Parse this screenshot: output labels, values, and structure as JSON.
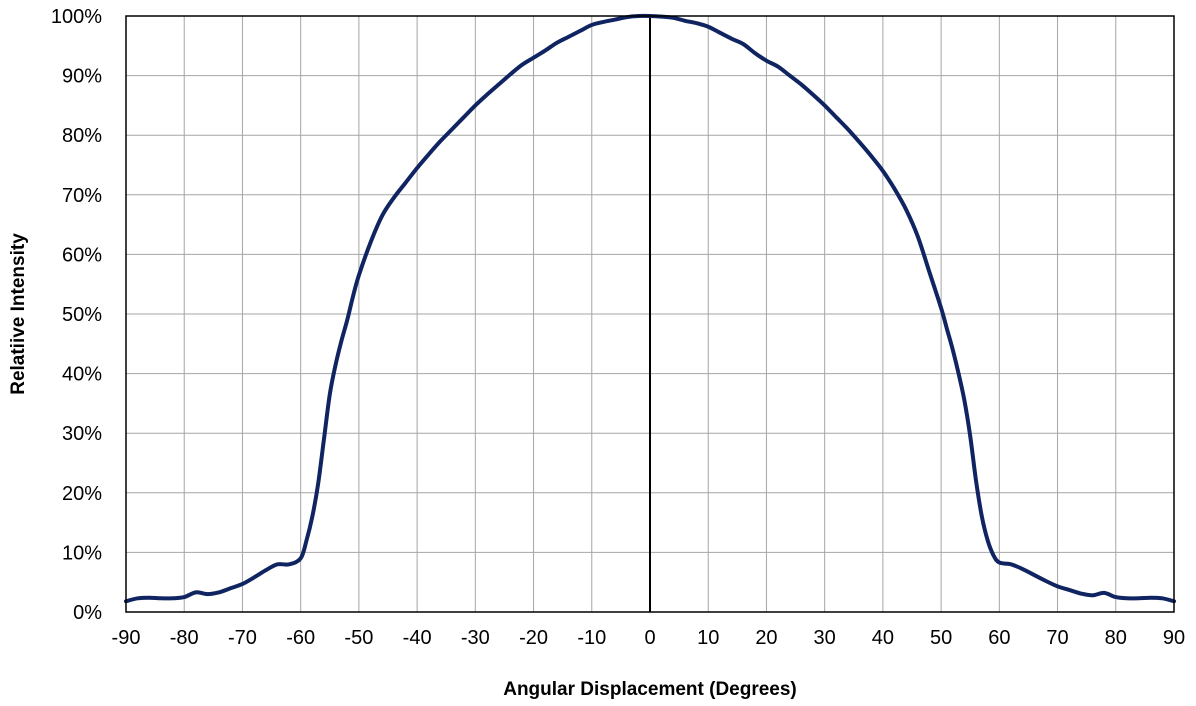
{
  "chart_data": {
    "type": "line",
    "title": "",
    "xlabel": "Angular Displacement (Degrees)",
    "ylabel": "Relatiive Intensity",
    "xlim": [
      -90,
      90
    ],
    "ylim": [
      0,
      100
    ],
    "x_ticks": [
      -90,
      -80,
      -70,
      -60,
      -50,
      -40,
      -30,
      -20,
      -10,
      0,
      10,
      20,
      30,
      40,
      50,
      60,
      70,
      80,
      90
    ],
    "x_tick_labels": [
      "-90",
      "-80",
      "-70",
      "-60",
      "-50",
      "-40",
      "-30",
      "-20",
      "-10",
      "0",
      "10",
      "20",
      "30",
      "40",
      "50",
      "60",
      "70",
      "80",
      "90"
    ],
    "y_ticks": [
      0,
      10,
      20,
      30,
      40,
      50,
      60,
      70,
      80,
      90,
      100
    ],
    "y_tick_labels": [
      "0%",
      "10%",
      "20%",
      "30%",
      "40%",
      "50%",
      "60%",
      "70%",
      "80%",
      "90%",
      "100%"
    ],
    "grid": true,
    "legend": "none",
    "colors": {
      "line": "#0f2461",
      "grid": "#a6a6a6",
      "axis": "#000000"
    },
    "series": [
      {
        "x": [
          -90,
          -88,
          -86,
          -84,
          -82,
          -80,
          -78,
          -76,
          -74,
          -72,
          -70,
          -68,
          -66,
          -64,
          -62,
          -60,
          -59,
          -58,
          -57,
          -56,
          -55,
          -54,
          -53,
          -52,
          -51,
          -50,
          -48,
          -46,
          -44,
          -42,
          -40,
          -38,
          -36,
          -34,
          -32,
          -30,
          -28,
          -26,
          -24,
          -22,
          -20,
          -18,
          -16,
          -14,
          -12,
          -10,
          -8,
          -6,
          -4,
          -2,
          0,
          2,
          4,
          6,
          8,
          10,
          12,
          14,
          16,
          18,
          20,
          22,
          24,
          26,
          28,
          30,
          32,
          34,
          36,
          38,
          40,
          42,
          44,
          46,
          48,
          50,
          51,
          52,
          53,
          54,
          55,
          56,
          57,
          58,
          59,
          60,
          62,
          64,
          66,
          68,
          70,
          72,
          74,
          76,
          78,
          80,
          82,
          84,
          86,
          88,
          90
        ],
        "y": [
          1.8,
          2.3,
          2.4,
          2.3,
          2.3,
          2.5,
          3.3,
          3.0,
          3.3,
          4.0,
          4.7,
          5.8,
          7.0,
          8.0,
          8.0,
          9.0,
          12.0,
          16.0,
          21.5,
          29.0,
          36.5,
          41.5,
          45.5,
          49.0,
          53.0,
          56.5,
          62.0,
          66.5,
          69.5,
          72.0,
          74.5,
          76.8,
          79.0,
          81.0,
          83.0,
          85.0,
          86.8,
          88.5,
          90.2,
          91.8,
          93.0,
          94.2,
          95.5,
          96.5,
          97.5,
          98.5,
          99.0,
          99.4,
          99.8,
          100.0,
          100.0,
          99.9,
          99.7,
          99.2,
          98.8,
          98.2,
          97.2,
          96.2,
          95.3,
          93.8,
          92.5,
          91.5,
          90.0,
          88.5,
          86.8,
          85.0,
          83.0,
          81.0,
          78.8,
          76.5,
          74.0,
          71.0,
          67.5,
          63.0,
          57.0,
          51.0,
          47.5,
          44.0,
          40.0,
          35.5,
          29.5,
          22.0,
          16.0,
          12.0,
          9.5,
          8.3,
          8.0,
          7.2,
          6.2,
          5.2,
          4.3,
          3.7,
          3.1,
          2.8,
          3.2,
          2.5,
          2.3,
          2.3,
          2.4,
          2.3,
          1.8
        ]
      }
    ]
  }
}
